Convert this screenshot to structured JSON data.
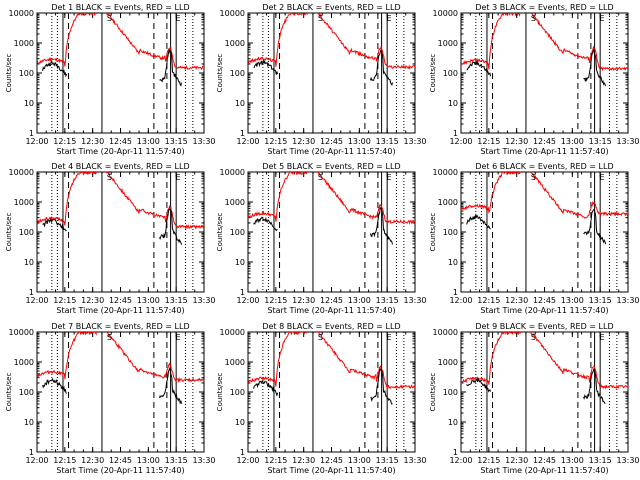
{
  "chart_data": {
    "type": "line",
    "ylabel": "Counts/sec",
    "xlabel": "Start Time (20-Apr-11 11:57:40)",
    "x_unit": "HH:MM",
    "x_ticks": [
      "12:00",
      "12:15",
      "12:30",
      "12:45",
      "13:00",
      "13:15",
      "13:30"
    ],
    "y_scale": "log",
    "ylim": [
      1,
      10000
    ],
    "y_ticks": [
      "1",
      "10",
      "100",
      "1000",
      "10000"
    ],
    "series_names": [
      "BLACK = Events",
      "RED = LLD"
    ],
    "series_colors": {
      "events": "#000000",
      "lld": "#ff0000"
    },
    "markers": {
      "solid_lines": [
        "12:14",
        "12:35",
        "13:12",
        "13:15"
      ],
      "dashed_lines": [
        "12:17",
        "13:03",
        "13:10"
      ],
      "dotted_lines": [
        "12:08",
        "12:11",
        "13:20",
        "13:24"
      ],
      "letters": [
        {
          "text": "S",
          "x": "12:39"
        },
        {
          "text": "E",
          "x": "13:16"
        }
      ]
    },
    "panels": [
      {
        "title": "Det 1",
        "lld_base": 150,
        "ev_base": 60
      },
      {
        "title": "Det 2",
        "lld_base": 160,
        "ev_base": 65
      },
      {
        "title": "Det 3",
        "lld_base": 140,
        "ev_base": 60
      },
      {
        "title": "Det 4",
        "lld_base": 150,
        "ev_base": 70
      },
      {
        "title": "Det 5",
        "lld_base": 220,
        "ev_base": 80
      },
      {
        "title": "Det 6",
        "lld_base": 400,
        "ev_base": 90
      },
      {
        "title": "Det 7",
        "lld_base": 250,
        "ev_base": 70
      },
      {
        "title": "Det 8",
        "lld_base": 150,
        "ev_base": 60
      },
      {
        "title": "Det 9",
        "lld_base": 150,
        "ev_base": 70
      }
    ],
    "title_template": "{det}  BLACK = Events, RED = LLD"
  }
}
